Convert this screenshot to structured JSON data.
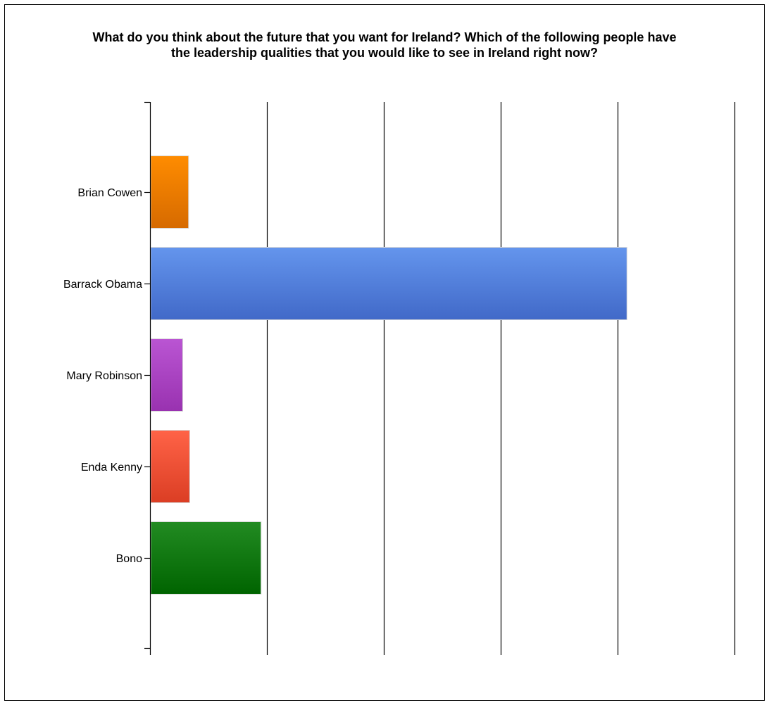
{
  "chart_data": {
    "type": "bar",
    "orientation": "horizontal",
    "title": "What do you think about the future that you want for Ireland? Which of the following people have the leadership qualities that you would like to see in Ireland right now?",
    "title_lines": [
      "What do you think about the future that you want for Ireland? Which of the following people have",
      "the leadership qualities that you would like to see in Ireland right now?"
    ],
    "xlabel": "",
    "ylabel": "",
    "categories": [
      "Brian Cowen",
      "Barrack Obama",
      "Mary Robinson",
      "Enda Kenny",
      "Bono"
    ],
    "values": [
      3.3,
      40.8,
      2.8,
      3.4,
      9.5
    ],
    "xlim": [
      0,
      50
    ],
    "gridline_count": 5,
    "tick_labels_shown": false,
    "grid": true,
    "legend": "none",
    "colors": [
      [
        "#ff8c00",
        "#d66a00"
      ],
      [
        "#6495ed",
        "#4169c8"
      ],
      [
        "#ba55d3",
        "#9932b0"
      ],
      [
        "#ff6347",
        "#db3e24"
      ],
      [
        "#228b22",
        "#006400"
      ]
    ]
  }
}
